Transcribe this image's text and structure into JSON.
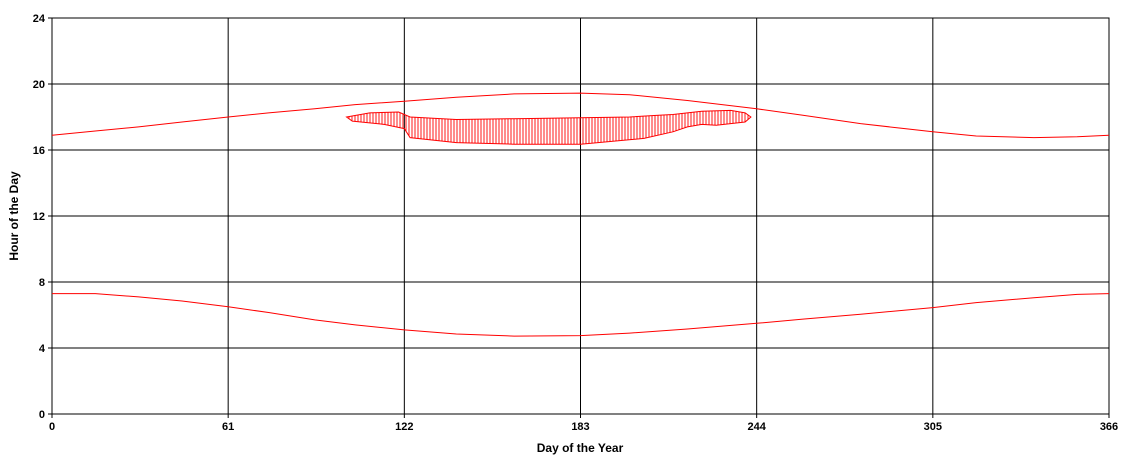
{
  "chart_data": {
    "type": "line",
    "title": "",
    "xlabel": "Day of the Year",
    "ylabel": "Hour of the Day",
    "xlim": [
      0,
      366
    ],
    "ylim": [
      0,
      24
    ],
    "x_ticks": [
      0,
      61,
      122,
      183,
      244,
      305,
      366
    ],
    "y_ticks": [
      0,
      4,
      8,
      12,
      16,
      20,
      24
    ],
    "grid": true,
    "legend": "none",
    "colors": {
      "series": "#ff0000",
      "grid": "#000000"
    },
    "series": [
      {
        "x": [
          0,
          15,
          30,
          45,
          61,
          75,
          91,
          105,
          122,
          140,
          160,
          183,
          200,
          220,
          244,
          260,
          280,
          305,
          320,
          340,
          355,
          366
        ],
        "y": [
          16.9,
          17.15,
          17.4,
          17.7,
          18.0,
          18.25,
          18.5,
          18.75,
          18.95,
          19.2,
          19.4,
          19.45,
          19.35,
          19.0,
          18.5,
          18.1,
          17.6,
          17.1,
          16.85,
          16.75,
          16.8,
          16.9
        ]
      },
      {
        "x": [
          0,
          15,
          30,
          45,
          61,
          75,
          91,
          105,
          122,
          140,
          160,
          183,
          200,
          220,
          244,
          260,
          280,
          305,
          320,
          340,
          355,
          366
        ],
        "y": [
          7.3,
          7.3,
          7.1,
          6.85,
          6.5,
          6.15,
          5.7,
          5.4,
          5.1,
          4.85,
          4.72,
          4.75,
          4.9,
          5.15,
          5.5,
          5.75,
          6.05,
          6.45,
          6.75,
          7.05,
          7.25,
          7.3
        ]
      },
      {
        "type": "hatched-area",
        "x": [
          102,
          110,
          120,
          124,
          140,
          160,
          183,
          200,
          210,
          215,
          225,
          235,
          240,
          242,
          240,
          230,
          225,
          220,
          215,
          205,
          183,
          160,
          140,
          124,
          122,
          115,
          104,
          102
        ],
        "y": [
          18.0,
          18.25,
          18.3,
          18.0,
          17.85,
          17.9,
          17.95,
          18.0,
          18.1,
          18.15,
          18.35,
          18.4,
          18.25,
          18.0,
          17.7,
          17.5,
          17.55,
          17.4,
          17.1,
          16.7,
          16.35,
          16.35,
          16.45,
          16.75,
          17.3,
          17.55,
          17.75,
          18.0
        ]
      }
    ]
  }
}
